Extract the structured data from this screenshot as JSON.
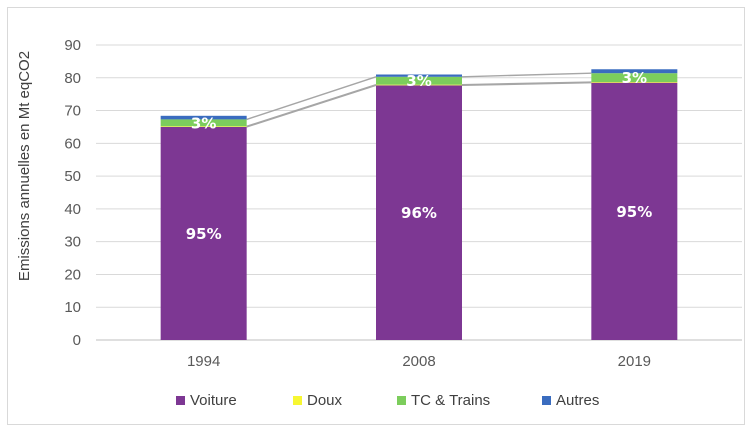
{
  "chart_data": {
    "type": "bar",
    "stacked": true,
    "title": "",
    "xlabel": "",
    "ylabel": "Emissions annuelles en Mt eqCO2",
    "ylim": [
      0,
      90
    ],
    "yticks": [
      0,
      10,
      20,
      30,
      40,
      50,
      60,
      70,
      80,
      90
    ],
    "grid": true,
    "legend_position": "bottom",
    "categories": [
      "1994",
      "2008",
      "2019"
    ],
    "series": [
      {
        "name": "Voiture",
        "color": "#7d3793",
        "values": [
          65.0,
          77.7,
          78.5
        ]
      },
      {
        "name": "Doux",
        "color": "#f7f732",
        "values": [
          0.2,
          0.2,
          0.2
        ]
      },
      {
        "name": "TC & Trains",
        "color": "#7ccd5c",
        "values": [
          2.1,
          2.4,
          2.7
        ]
      },
      {
        "name": "Autres",
        "color": "#3a6cbf",
        "values": [
          1.1,
          0.7,
          1.2
        ]
      }
    ],
    "data_labels": [
      {
        "category": "1994",
        "series": "Voiture",
        "text": "95%"
      },
      {
        "category": "2008",
        "series": "Voiture",
        "text": "96%"
      },
      {
        "category": "2019",
        "series": "Voiture",
        "text": "95%"
      },
      {
        "category": "1994",
        "series": "TC & Trains",
        "text": "3%"
      },
      {
        "category": "2008",
        "series": "TC & Trains",
        "text": "3%"
      },
      {
        "category": "2019",
        "series": "TC & Trains",
        "text": "3%"
      }
    ]
  }
}
